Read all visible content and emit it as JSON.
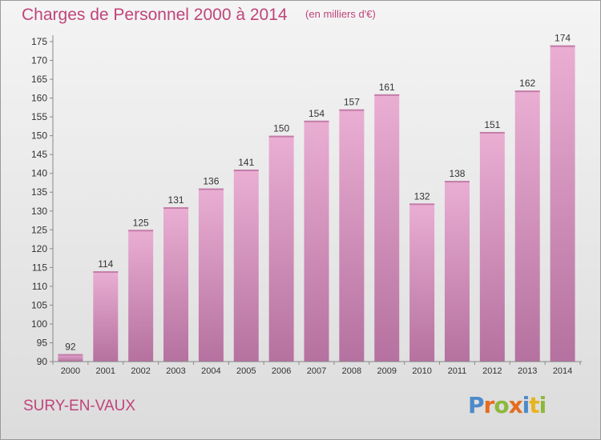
{
  "chart_data": {
    "type": "bar",
    "title": "Charges de Personnel 2000 à 2014",
    "subtitle": "(en milliers d'€)",
    "xlabel": "",
    "ylabel": "",
    "categories": [
      "2000",
      "2001",
      "2002",
      "2003",
      "2004",
      "2005",
      "2006",
      "2007",
      "2008",
      "2009",
      "2010",
      "2011",
      "2012",
      "2013",
      "2014"
    ],
    "values": [
      92,
      114,
      125,
      131,
      136,
      141,
      150,
      154,
      157,
      161,
      132,
      138,
      151,
      162,
      174
    ],
    "ylim": [
      90,
      175
    ],
    "yticks": [
      90,
      95,
      100,
      105,
      110,
      115,
      120,
      125,
      130,
      135,
      140,
      145,
      150,
      155,
      160,
      165,
      170,
      175
    ],
    "grid": false,
    "legend": "none",
    "colors": {
      "bar_top": "#eaaed3",
      "bar_bottom": "#b5719f",
      "bar_cap": "#c37da9",
      "title": "#c0447a",
      "axis": "#888888",
      "text": "#333333"
    }
  },
  "footer": {
    "commune": "SURY-EN-VAUX"
  },
  "brand": {
    "name": "Proxiti",
    "letters": [
      {
        "char": "P",
        "color": "#4d8ac9"
      },
      {
        "char": "r",
        "color": "#e46d1e"
      },
      {
        "char": "o",
        "color": "#8db83a"
      },
      {
        "char": "x",
        "color": "#e46d1e"
      },
      {
        "char": "i",
        "color": "#4d8ac9"
      },
      {
        "char": "t",
        "color": "#e9b41b"
      },
      {
        "char": "i",
        "color": "#8db83a"
      }
    ]
  }
}
